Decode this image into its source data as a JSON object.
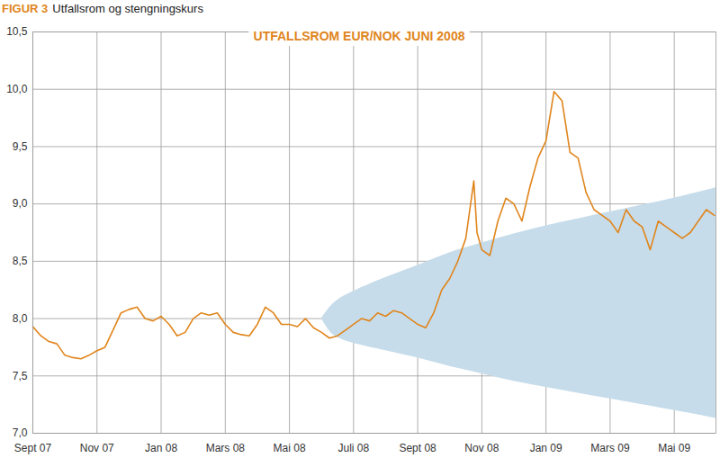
{
  "chart_data": {
    "type": "line",
    "figure_label": "FIGUR 3",
    "subtitle": "Utfallsrom og stengningskurs",
    "title": "UTFALLSROM EUR/NOK JUNI 2008",
    "x": [
      0,
      0.25,
      0.5,
      0.75,
      1,
      1.25,
      1.5,
      1.75,
      2,
      2.25,
      2.5,
      2.75,
      3,
      3.25,
      3.5,
      3.75,
      4,
      4.25,
      4.5,
      4.75,
      5,
      5.25,
      5.5,
      5.75,
      6,
      6.25,
      6.5,
      6.75,
      7,
      7.25,
      7.5,
      7.75,
      8,
      8.25,
      8.5,
      8.75,
      9,
      9.25,
      9.5,
      9.75,
      10,
      10.25,
      10.5,
      10.75,
      11,
      11.25,
      11.5,
      11.75,
      12,
      12.25,
      12.5,
      12.75,
      13,
      13.25,
      13.5,
      13.75,
      13.85,
      14,
      14.25,
      14.5,
      14.75,
      15,
      15.25,
      15.5,
      15.75,
      16,
      16.25,
      16.5,
      16.75,
      17,
      17.25,
      17.5,
      17.75,
      18,
      18.25,
      18.5,
      18.75,
      19,
      19.25,
      19.5,
      19.75,
      20,
      20.25,
      20.5,
      20.75,
      21,
      21.25
    ],
    "series": [
      {
        "color": "#e0851c",
        "values": [
          7.93,
          7.85,
          7.8,
          7.78,
          7.68,
          7.66,
          7.65,
          7.68,
          7.72,
          7.75,
          7.9,
          8.05,
          8.08,
          8.1,
          8.0,
          7.98,
          8.02,
          7.95,
          7.85,
          7.88,
          8.0,
          8.05,
          8.03,
          8.05,
          7.95,
          7.88,
          7.86,
          7.85,
          7.95,
          8.1,
          8.05,
          7.95,
          7.95,
          7.93,
          8.0,
          7.92,
          7.88,
          7.83,
          7.85,
          7.9,
          7.95,
          8.0,
          7.98,
          8.05,
          8.02,
          8.07,
          8.05,
          8.0,
          7.95,
          7.92,
          8.05,
          8.25,
          8.35,
          8.5,
          8.7,
          9.2,
          8.75,
          8.6,
          8.55,
          8.85,
          9.05,
          9.0,
          8.85,
          9.15,
          9.4,
          9.55,
          9.98,
          9.9,
          9.45,
          9.4,
          9.1,
          8.95,
          8.9,
          8.85,
          8.75,
          8.95,
          8.85,
          8.8,
          8.6,
          8.85,
          8.8,
          8.75,
          8.7,
          8.75,
          8.85,
          8.95,
          8.9
        ]
      }
    ],
    "band": {
      "color": "#c6dcea",
      "x": [
        9,
        9.25,
        9.5,
        10,
        11,
        12,
        13,
        14,
        15,
        16,
        17,
        18,
        19,
        20,
        21.3
      ],
      "lower": [
        8.0,
        7.88,
        7.83,
        7.78,
        7.72,
        7.66,
        7.58,
        7.52,
        7.45,
        7.4,
        7.35,
        7.3,
        7.25,
        7.2,
        7.13
      ],
      "upper": [
        8.0,
        8.1,
        8.17,
        8.24,
        8.36,
        8.46,
        8.58,
        8.66,
        8.74,
        8.81,
        8.87,
        8.93,
        8.99,
        9.05,
        9.14
      ]
    },
    "xlim": [
      0,
      21.3
    ],
    "xticks": [
      {
        "value": 0,
        "label": "Sept 07"
      },
      {
        "value": 2,
        "label": "Nov 07"
      },
      {
        "value": 4,
        "label": "Jan 08"
      },
      {
        "value": 6,
        "label": "Mars 08"
      },
      {
        "value": 8,
        "label": "Mai 08"
      },
      {
        "value": 10,
        "label": "Juli 08"
      },
      {
        "value": 12,
        "label": "Sept 08"
      },
      {
        "value": 14,
        "label": "Nov 08"
      },
      {
        "value": 16,
        "label": "Jan 09"
      },
      {
        "value": 18,
        "label": "Mars 09"
      },
      {
        "value": 20,
        "label": "Mai 09"
      }
    ],
    "ylim": [
      7,
      10.5
    ],
    "yticks": [
      {
        "value": 7,
        "label": "7,0"
      },
      {
        "value": 7.5,
        "label": "7,5"
      },
      {
        "value": 8,
        "label": "8,0"
      },
      {
        "value": 8.5,
        "label": "8,5"
      },
      {
        "value": 9,
        "label": "9,0"
      },
      {
        "value": 9.5,
        "label": "9,5"
      },
      {
        "value": 10,
        "label": "10,0"
      },
      {
        "value": 10.5,
        "label": "10,5"
      }
    ],
    "grid": true
  }
}
